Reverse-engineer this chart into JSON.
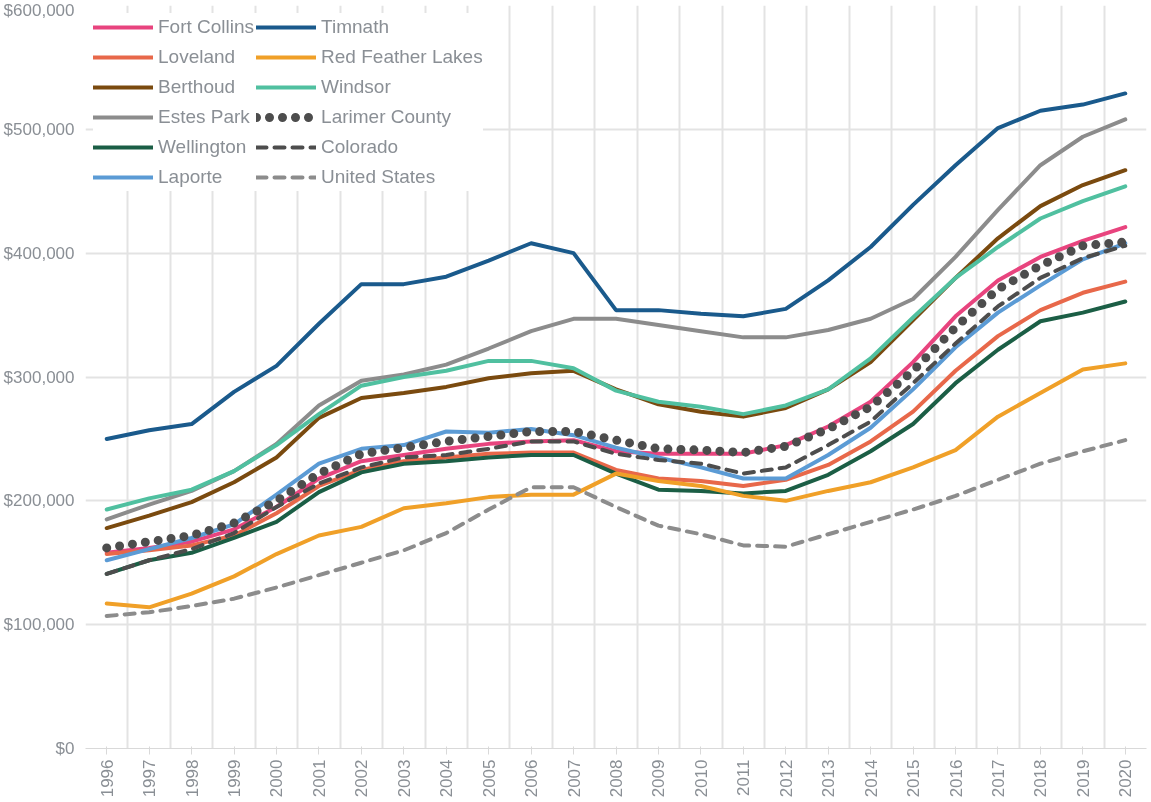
{
  "chart_data": {
    "type": "line",
    "categories": [
      "1996",
      "1997",
      "1998",
      "1999",
      "2000",
      "2001",
      "2002",
      "2003",
      "2004",
      "2005",
      "2006",
      "2007",
      "2008",
      "2009",
      "2010",
      "2011",
      "2012",
      "2013",
      "2014",
      "2015",
      "2016",
      "2017",
      "2018",
      "2019",
      "2020"
    ],
    "ylim": [
      0,
      600000
    ],
    "yticks": [
      {
        "value": 0,
        "label": "$0"
      },
      {
        "value": 100000,
        "label": "$100,000"
      },
      {
        "value": 200000,
        "label": "$200,000"
      },
      {
        "value": 300000,
        "label": "$300,000"
      },
      {
        "value": 400000,
        "label": "$400,000"
      },
      {
        "value": 500000,
        "label": "$500,000"
      },
      {
        "value": 600000,
        "label": "$600,000"
      }
    ],
    "grid": true,
    "legend": "top left",
    "series": [
      {
        "name": "Fort Collins",
        "color": "#e8447e",
        "line_style": "solid",
        "values": [
          158000,
          162000,
          167000,
          177000,
          195000,
          218000,
          232000,
          237000,
          242000,
          246000,
          248000,
          249000,
          240000,
          238000,
          238000,
          238000,
          245000,
          260000,
          280000,
          312000,
          349000,
          378000,
          397000,
          410000,
          421000
        ]
      },
      {
        "name": "Loveland",
        "color": "#e8684a",
        "line_style": "solid",
        "values": [
          157000,
          160000,
          164000,
          172000,
          190000,
          212000,
          225000,
          232000,
          235000,
          238000,
          239000,
          239000,
          225000,
          218000,
          216000,
          212000,
          217000,
          229000,
          248000,
          272000,
          305000,
          333000,
          354000,
          368000,
          377000
        ]
      },
      {
        "name": "Berthoud",
        "color": "#7a4a0f",
        "line_style": "solid",
        "values": [
          178000,
          188000,
          199000,
          215000,
          235000,
          267000,
          283000,
          287000,
          292000,
          299000,
          303000,
          305000,
          290000,
          278000,
          272000,
          268000,
          275000,
          290000,
          312000,
          346000,
          380000,
          412000,
          438000,
          455000,
          467000
        ]
      },
      {
        "name": "Estes Park",
        "color": "#8c8c8c",
        "line_style": "solid",
        "values": [
          185000,
          197000,
          208000,
          224000,
          246000,
          277000,
          297000,
          302000,
          310000,
          323000,
          337000,
          347000,
          347000,
          342000,
          337000,
          332000,
          332000,
          338000,
          347000,
          363000,
          397000,
          435000,
          471000,
          494000,
          508000
        ]
      },
      {
        "name": "Wellington",
        "color": "#1b5e45",
        "line_style": "solid",
        "values": [
          141000,
          152000,
          158000,
          170000,
          183000,
          207000,
          223000,
          230000,
          232000,
          235000,
          237000,
          237000,
          222000,
          209000,
          208000,
          206000,
          208000,
          221000,
          240000,
          262000,
          295000,
          322000,
          345000,
          352000,
          361000
        ]
      },
      {
        "name": "Laporte",
        "color": "#5b9bd5",
        "line_style": "solid",
        "values": [
          152000,
          161000,
          170000,
          181000,
          205000,
          230000,
          242000,
          245000,
          256000,
          255000,
          258000,
          253000,
          243000,
          235000,
          227000,
          218000,
          218000,
          237000,
          259000,
          290000,
          324000,
          352000,
          374000,
          395000,
          408000
        ]
      },
      {
        "name": "Timnath",
        "color": "#1a5a8c",
        "line_style": "solid",
        "values": [
          250000,
          257000,
          262000,
          288000,
          309000,
          343000,
          375000,
          375000,
          381000,
          394000,
          408000,
          400000,
          354000,
          354000,
          351000,
          349000,
          355000,
          378000,
          405000,
          439000,
          471000,
          501000,
          515000,
          520000,
          529000
        ]
      },
      {
        "name": "Red Feather Lakes",
        "color": "#f0a028",
        "line_style": "solid",
        "values": [
          117000,
          114000,
          125000,
          139000,
          157000,
          172000,
          179000,
          194000,
          198000,
          203000,
          205000,
          205000,
          222000,
          216000,
          212000,
          204000,
          200000,
          208000,
          215000,
          227000,
          241000,
          268000,
          287000,
          306000,
          311000
        ]
      },
      {
        "name": "Windsor",
        "color": "#50c0a0",
        "line_style": "solid",
        "values": [
          193000,
          202000,
          209000,
          224000,
          245000,
          270000,
          293000,
          300000,
          305000,
          313000,
          313000,
          307000,
          289000,
          280000,
          276000,
          270000,
          277000,
          290000,
          315000,
          348000,
          380000,
          405000,
          428000,
          442000,
          454000
        ]
      },
      {
        "name": "Larimer County",
        "color": "#4d4d4d",
        "line_style": "dotted",
        "values": [
          162000,
          167000,
          172000,
          182000,
          200000,
          222000,
          238000,
          243000,
          248000,
          252000,
          256000,
          256000,
          249000,
          242000,
          241000,
          239000,
          244000,
          258000,
          276000,
          305000,
          340000,
          371000,
          390000,
          406000,
          409000
        ]
      },
      {
        "name": "Colorado",
        "color": "#4d4d4d",
        "line_style": "dashed",
        "values": [
          141000,
          152000,
          161000,
          174000,
          195000,
          214000,
          227000,
          235000,
          237000,
          242000,
          248000,
          248000,
          238000,
          233000,
          230000,
          222000,
          227000,
          245000,
          264000,
          295000,
          327000,
          357000,
          380000,
          396000,
          406000
        ]
      },
      {
        "name": "United States",
        "color": "#8c8c8c",
        "line_style": "dashed",
        "values": [
          107000,
          110000,
          115000,
          121000,
          130000,
          140000,
          150000,
          160000,
          174000,
          193000,
          211000,
          211000,
          195000,
          180000,
          173000,
          164000,
          163000,
          173000,
          183000,
          193000,
          204000,
          217000,
          230000,
          240000,
          249000
        ]
      }
    ]
  }
}
